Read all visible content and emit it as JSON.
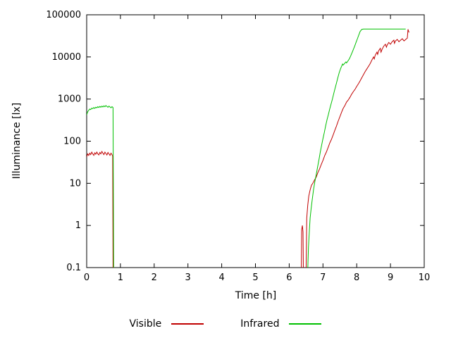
{
  "chart": {
    "ylabel": "Illuminance [lx]",
    "xlabel": "Time [h]",
    "legend": [
      {
        "label": "Visible",
        "color": "#c00000"
      },
      {
        "label": "Infrared",
        "color": "#00c000"
      }
    ]
  },
  "chart_data": {
    "type": "line",
    "title": "",
    "xlabel": "Time [h]",
    "ylabel": "Illuminance [lx]",
    "x_scale": "linear",
    "y_scale": "log",
    "xlim": [
      0,
      10
    ],
    "ylim": [
      0.1,
      100000
    ],
    "x_ticks": [
      0,
      1,
      2,
      3,
      4,
      5,
      6,
      7,
      8,
      9,
      10
    ],
    "x_tick_labels": [
      "0",
      "1",
      "2",
      "3",
      "4",
      "5",
      "6",
      "7",
      "8",
      "9",
      "10"
    ],
    "y_ticks": [
      0.1,
      1,
      10,
      100,
      1000,
      10000,
      100000
    ],
    "y_tick_labels": [
      "0.1",
      "1",
      "10",
      "100",
      "1000",
      "10000",
      "100000"
    ],
    "grid": false,
    "legend_position": "below",
    "axis_color": "#000000",
    "series": [
      {
        "name": "Visible",
        "color": "#c00000",
        "points": [
          [
            0.0,
            42
          ],
          [
            0.03,
            50
          ],
          [
            0.06,
            46
          ],
          [
            0.09,
            52
          ],
          [
            0.12,
            48
          ],
          [
            0.15,
            55
          ],
          [
            0.18,
            50
          ],
          [
            0.21,
            46
          ],
          [
            0.24,
            53
          ],
          [
            0.27,
            49
          ],
          [
            0.3,
            55
          ],
          [
            0.33,
            50
          ],
          [
            0.36,
            47
          ],
          [
            0.39,
            54
          ],
          [
            0.42,
            50
          ],
          [
            0.45,
            57
          ],
          [
            0.48,
            52
          ],
          [
            0.51,
            48
          ],
          [
            0.54,
            55
          ],
          [
            0.57,
            51
          ],
          [
            0.6,
            47
          ],
          [
            0.63,
            54
          ],
          [
            0.66,
            50
          ],
          [
            0.69,
            46
          ],
          [
            0.72,
            52
          ],
          [
            0.75,
            48
          ],
          [
            0.77,
            44
          ],
          [
            0.78,
            0.09
          ],
          null,
          [
            6.36,
            0.09
          ],
          [
            6.37,
            0.8
          ],
          [
            6.39,
            1.0
          ],
          [
            6.41,
            0.7
          ],
          [
            6.42,
            0.09
          ],
          null,
          [
            6.5,
            0.09
          ],
          [
            6.52,
            1.5
          ],
          [
            6.55,
            3
          ],
          [
            6.58,
            5
          ],
          [
            6.62,
            7
          ],
          [
            6.66,
            9
          ],
          [
            6.7,
            10
          ],
          [
            6.75,
            12
          ],
          [
            6.8,
            14
          ],
          [
            6.85,
            18
          ],
          [
            6.9,
            22
          ],
          [
            6.95,
            28
          ],
          [
            7.0,
            35
          ],
          [
            7.05,
            45
          ],
          [
            7.1,
            55
          ],
          [
            7.15,
            70
          ],
          [
            7.2,
            90
          ],
          [
            7.25,
            110
          ],
          [
            7.3,
            140
          ],
          [
            7.35,
            180
          ],
          [
            7.4,
            230
          ],
          [
            7.45,
            300
          ],
          [
            7.5,
            380
          ],
          [
            7.55,
            480
          ],
          [
            7.6,
            600
          ],
          [
            7.65,
            700
          ],
          [
            7.7,
            850
          ],
          [
            7.75,
            950
          ],
          [
            7.8,
            1100
          ],
          [
            7.85,
            1300
          ],
          [
            7.9,
            1500
          ],
          [
            7.95,
            1700
          ],
          [
            8.0,
            2000
          ],
          [
            8.05,
            2300
          ],
          [
            8.1,
            2700
          ],
          [
            8.15,
            3200
          ],
          [
            8.2,
            3800
          ],
          [
            8.25,
            4500
          ],
          [
            8.3,
            5200
          ],
          [
            8.35,
            6000
          ],
          [
            8.4,
            7000
          ],
          [
            8.45,
            8500
          ],
          [
            8.5,
            10000
          ],
          [
            8.52,
            9000
          ],
          [
            8.55,
            11000
          ],
          [
            8.6,
            13000
          ],
          [
            8.62,
            11500
          ],
          [
            8.65,
            14000
          ],
          [
            8.7,
            16000
          ],
          [
            8.72,
            13000
          ],
          [
            8.75,
            15000
          ],
          [
            8.8,
            18000
          ],
          [
            8.85,
            20000
          ],
          [
            8.88,
            17000
          ],
          [
            8.9,
            19000
          ],
          [
            8.95,
            22000
          ],
          [
            9.0,
            20000
          ],
          [
            9.05,
            23000
          ],
          [
            9.1,
            25000
          ],
          [
            9.12,
            21000
          ],
          [
            9.15,
            24000
          ],
          [
            9.2,
            26000
          ],
          [
            9.25,
            23000
          ],
          [
            9.3,
            25000
          ],
          [
            9.35,
            27000
          ],
          [
            9.4,
            24000
          ],
          [
            9.45,
            26000
          ],
          [
            9.5,
            28000
          ],
          [
            9.52,
            45000
          ],
          [
            9.55,
            38000
          ]
        ]
      },
      {
        "name": "Infrared",
        "color": "#00c000",
        "points": [
          [
            0.0,
            420
          ],
          [
            0.03,
            500
          ],
          [
            0.06,
            540
          ],
          [
            0.09,
            580
          ],
          [
            0.12,
            560
          ],
          [
            0.15,
            610
          ],
          [
            0.18,
            590
          ],
          [
            0.21,
            630
          ],
          [
            0.24,
            600
          ],
          [
            0.27,
            640
          ],
          [
            0.3,
            620
          ],
          [
            0.33,
            660
          ],
          [
            0.36,
            630
          ],
          [
            0.39,
            670
          ],
          [
            0.42,
            640
          ],
          [
            0.45,
            680
          ],
          [
            0.48,
            650
          ],
          [
            0.51,
            690
          ],
          [
            0.54,
            660
          ],
          [
            0.57,
            700
          ],
          [
            0.6,
            670
          ],
          [
            0.63,
            640
          ],
          [
            0.66,
            680
          ],
          [
            0.69,
            650
          ],
          [
            0.72,
            620
          ],
          [
            0.75,
            660
          ],
          [
            0.78,
            630
          ],
          [
            0.8,
            0.09
          ],
          null,
          [
            6.55,
            0.09
          ],
          [
            6.57,
            0.3
          ],
          [
            6.6,
            0.8
          ],
          [
            6.62,
            1.5
          ],
          [
            6.65,
            2.5
          ],
          [
            6.68,
            4
          ],
          [
            6.72,
            7
          ],
          [
            6.76,
            11
          ],
          [
            6.8,
            16
          ],
          [
            6.84,
            24
          ],
          [
            6.88,
            36
          ],
          [
            6.92,
            55
          ],
          [
            6.96,
            80
          ],
          [
            7.0,
            115
          ],
          [
            7.04,
            160
          ],
          [
            7.08,
            230
          ],
          [
            7.12,
            320
          ],
          [
            7.16,
            430
          ],
          [
            7.2,
            580
          ],
          [
            7.24,
            760
          ],
          [
            7.28,
            1000
          ],
          [
            7.32,
            1350
          ],
          [
            7.36,
            1800
          ],
          [
            7.4,
            2400
          ],
          [
            7.44,
            3200
          ],
          [
            7.48,
            4200
          ],
          [
            7.52,
            5200
          ],
          [
            7.56,
            6200
          ],
          [
            7.58,
            6800
          ],
          [
            7.6,
            6400
          ],
          [
            7.64,
            7000
          ],
          [
            7.68,
            7600
          ],
          [
            7.7,
            7200
          ],
          [
            7.74,
            8000
          ],
          [
            7.78,
            9000
          ],
          [
            7.82,
            10500
          ],
          [
            7.86,
            12500
          ],
          [
            7.9,
            15000
          ],
          [
            7.94,
            18000
          ],
          [
            7.98,
            22000
          ],
          [
            8.02,
            27000
          ],
          [
            8.06,
            33000
          ],
          [
            8.1,
            40000
          ],
          [
            8.15,
            45000
          ],
          [
            8.2,
            46000
          ],
          [
            8.4,
            46000
          ],
          [
            8.6,
            46000
          ],
          [
            8.8,
            46000
          ],
          [
            9.0,
            46000
          ],
          [
            9.2,
            46000
          ],
          [
            9.4,
            46000
          ],
          [
            9.45,
            46000
          ]
        ]
      }
    ]
  }
}
